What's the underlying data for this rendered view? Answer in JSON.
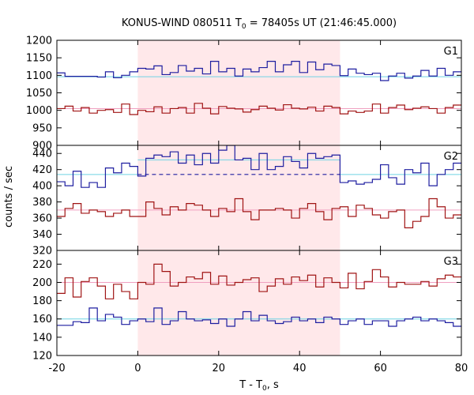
{
  "chart_data": {
    "type": "line",
    "title_parts": {
      "pre": "KONUS-WIND 080511 T",
      "sub": "0",
      "post": " = 78405s UT (21:46:45.000)"
    },
    "xlabel_parts": {
      "pre": "T - T",
      "sub": "0",
      "post": ", s"
    },
    "ylabel": "counts / sec",
    "xlim": [
      -20,
      80
    ],
    "x_ticks": [
      -20,
      0,
      20,
      40,
      60,
      80
    ],
    "highlight": {
      "x_start": 0,
      "x_end": 50,
      "color": "#ffe8ea"
    },
    "bin_edges": [
      -20,
      -18,
      -16,
      -14,
      -12,
      -10,
      -8,
      -6,
      -4,
      -2,
      0,
      2,
      4,
      6,
      8,
      10,
      12,
      14,
      16,
      18,
      20,
      22,
      24,
      26,
      28,
      30,
      32,
      34,
      36,
      38,
      40,
      42,
      44,
      46,
      48,
      50,
      52,
      54,
      56,
      58,
      60,
      62,
      64,
      66,
      68,
      70,
      72,
      74,
      76,
      78,
      80
    ],
    "colors": {
      "blue": "#1e1ea0",
      "red": "#a01414",
      "cyan": "#6fd3e3",
      "pink": "#f0a0c0"
    },
    "panels": [
      {
        "label": "G1",
        "ylim": [
          900,
          1200
        ],
        "y_ticks": [
          900,
          950,
          1000,
          1050,
          1100,
          1150,
          1200
        ],
        "series": [
          {
            "color": "blue",
            "values": [
              1107,
              1097,
              1097,
              1097,
              1097,
              1095,
              1110,
              1093,
              1100,
              1110,
              1120,
              1118,
              1127,
              1102,
              1108,
              1128,
              1112,
              1120,
              1104,
              1140,
              1110,
              1120,
              1098,
              1118,
              1110,
              1122,
              1140,
              1110,
              1130,
              1140,
              1108,
              1138,
              1116,
              1132,
              1128,
              1099,
              1118,
              1106,
              1102,
              1106,
              1085,
              1098,
              1106,
              1092,
              1098,
              1114,
              1098,
              1120,
              1100,
              1110
            ]
          },
          {
            "color": "red",
            "values": [
              1005,
              1012,
              998,
              1008,
              992,
              1000,
              1002,
              994,
              1018,
              988,
              1000,
              996,
              1010,
              992,
              1005,
              1008,
              992,
              1020,
              1006,
              990,
              1011,
              1006,
              1004,
              995,
              1002,
              1012,
              1006,
              1001,
              1016,
              1006,
              1004,
              1009,
              998,
              1012,
              1008,
              990,
              998,
              994,
              998,
              1018,
              992,
              1008,
              1015,
              1002,
              1006,
              1010,
              1005,
              992,
              1008,
              1015
            ]
          }
        ],
        "refs": [
          {
            "color": "cyan",
            "from": -20,
            "to": 80,
            "value": 1096
          },
          {
            "color": "pink",
            "from": -20,
            "to": 80,
            "value": 1005
          }
        ]
      },
      {
        "label": "G2",
        "ylim": [
          320,
          450
        ],
        "y_ticks": [
          320,
          340,
          360,
          380,
          400,
          420,
          440
        ],
        "series": [
          {
            "color": "blue",
            "values": [
              405,
              400,
              418,
              398,
              404,
              398,
              422,
              416,
              428,
              424,
              412,
              434,
              438,
              436,
              442,
              428,
              438,
              426,
              440,
              428,
              444,
              450,
              432,
              434,
              420,
              440,
              420,
              424,
              436,
              430,
              422,
              440,
              434,
              436,
              438,
              404,
              406,
              402,
              404,
              408,
              426,
              410,
              402,
              420,
              416,
              428,
              400,
              414,
              420,
              428
            ]
          },
          {
            "color": "red",
            "values": [
              362,
              372,
              378,
              366,
              370,
              368,
              362,
              366,
              370,
              362,
              362,
              380,
              372,
              364,
              374,
              370,
              378,
              376,
              370,
              362,
              372,
              368,
              384,
              368,
              358,
              370,
              370,
              372,
              370,
              360,
              372,
              378,
              368,
              358,
              372,
              374,
              362,
              376,
              372,
              364,
              360,
              368,
              370,
              348,
              356,
              362,
              384,
              374,
              360,
              364
            ]
          }
        ],
        "refs": [
          {
            "color": "cyan",
            "from": -20,
            "to": 0,
            "value": 414
          },
          {
            "color": "cyan",
            "from": 0,
            "to": 50,
            "value": 432
          },
          {
            "color": "cyan",
            "from": 50,
            "to": 80,
            "value": 414
          },
          {
            "color": "pink",
            "from": -20,
            "to": 80,
            "value": 370
          }
        ],
        "dashed_ref": {
          "color": "blue",
          "from": 0,
          "to": 50,
          "value": 414
        }
      },
      {
        "label": "G3",
        "ylim": [
          120,
          235
        ],
        "y_ticks": [
          120,
          140,
          160,
          180,
          200,
          220
        ],
        "series": [
          {
            "color": "red",
            "values": [
              188,
              205,
              184,
              201,
              205,
              196,
              182,
              198,
              190,
              182,
              200,
              198,
              220,
              212,
              196,
              200,
              206,
              204,
              211,
              198,
              207,
              197,
              200,
              203,
              205,
              190,
              196,
              204,
              198,
              206,
              202,
              208,
              195,
              205,
              200,
              194,
              210,
              193,
              201,
              214,
              206,
              195,
              200,
              198,
              198,
              201,
              196,
              204,
              208,
              206
            ]
          },
          {
            "color": "blue",
            "values": [
              153,
              153,
              157,
              156,
              172,
              158,
              165,
              162,
              154,
              158,
              160,
              157,
              172,
              154,
              158,
              168,
              160,
              158,
              159,
              155,
              160,
              152,
              160,
              168,
              158,
              164,
              158,
              155,
              157,
              162,
              158,
              160,
              156,
              162,
              160,
              154,
              158,
              160,
              154,
              158,
              158,
              152,
              158,
              160,
              162,
              158,
              160,
              158,
              156,
              152
            ]
          }
        ],
        "refs": [
          {
            "color": "pink",
            "from": -20,
            "to": 80,
            "value": 200
          },
          {
            "color": "cyan",
            "from": -20,
            "to": 80,
            "value": 160
          }
        ]
      }
    ]
  }
}
